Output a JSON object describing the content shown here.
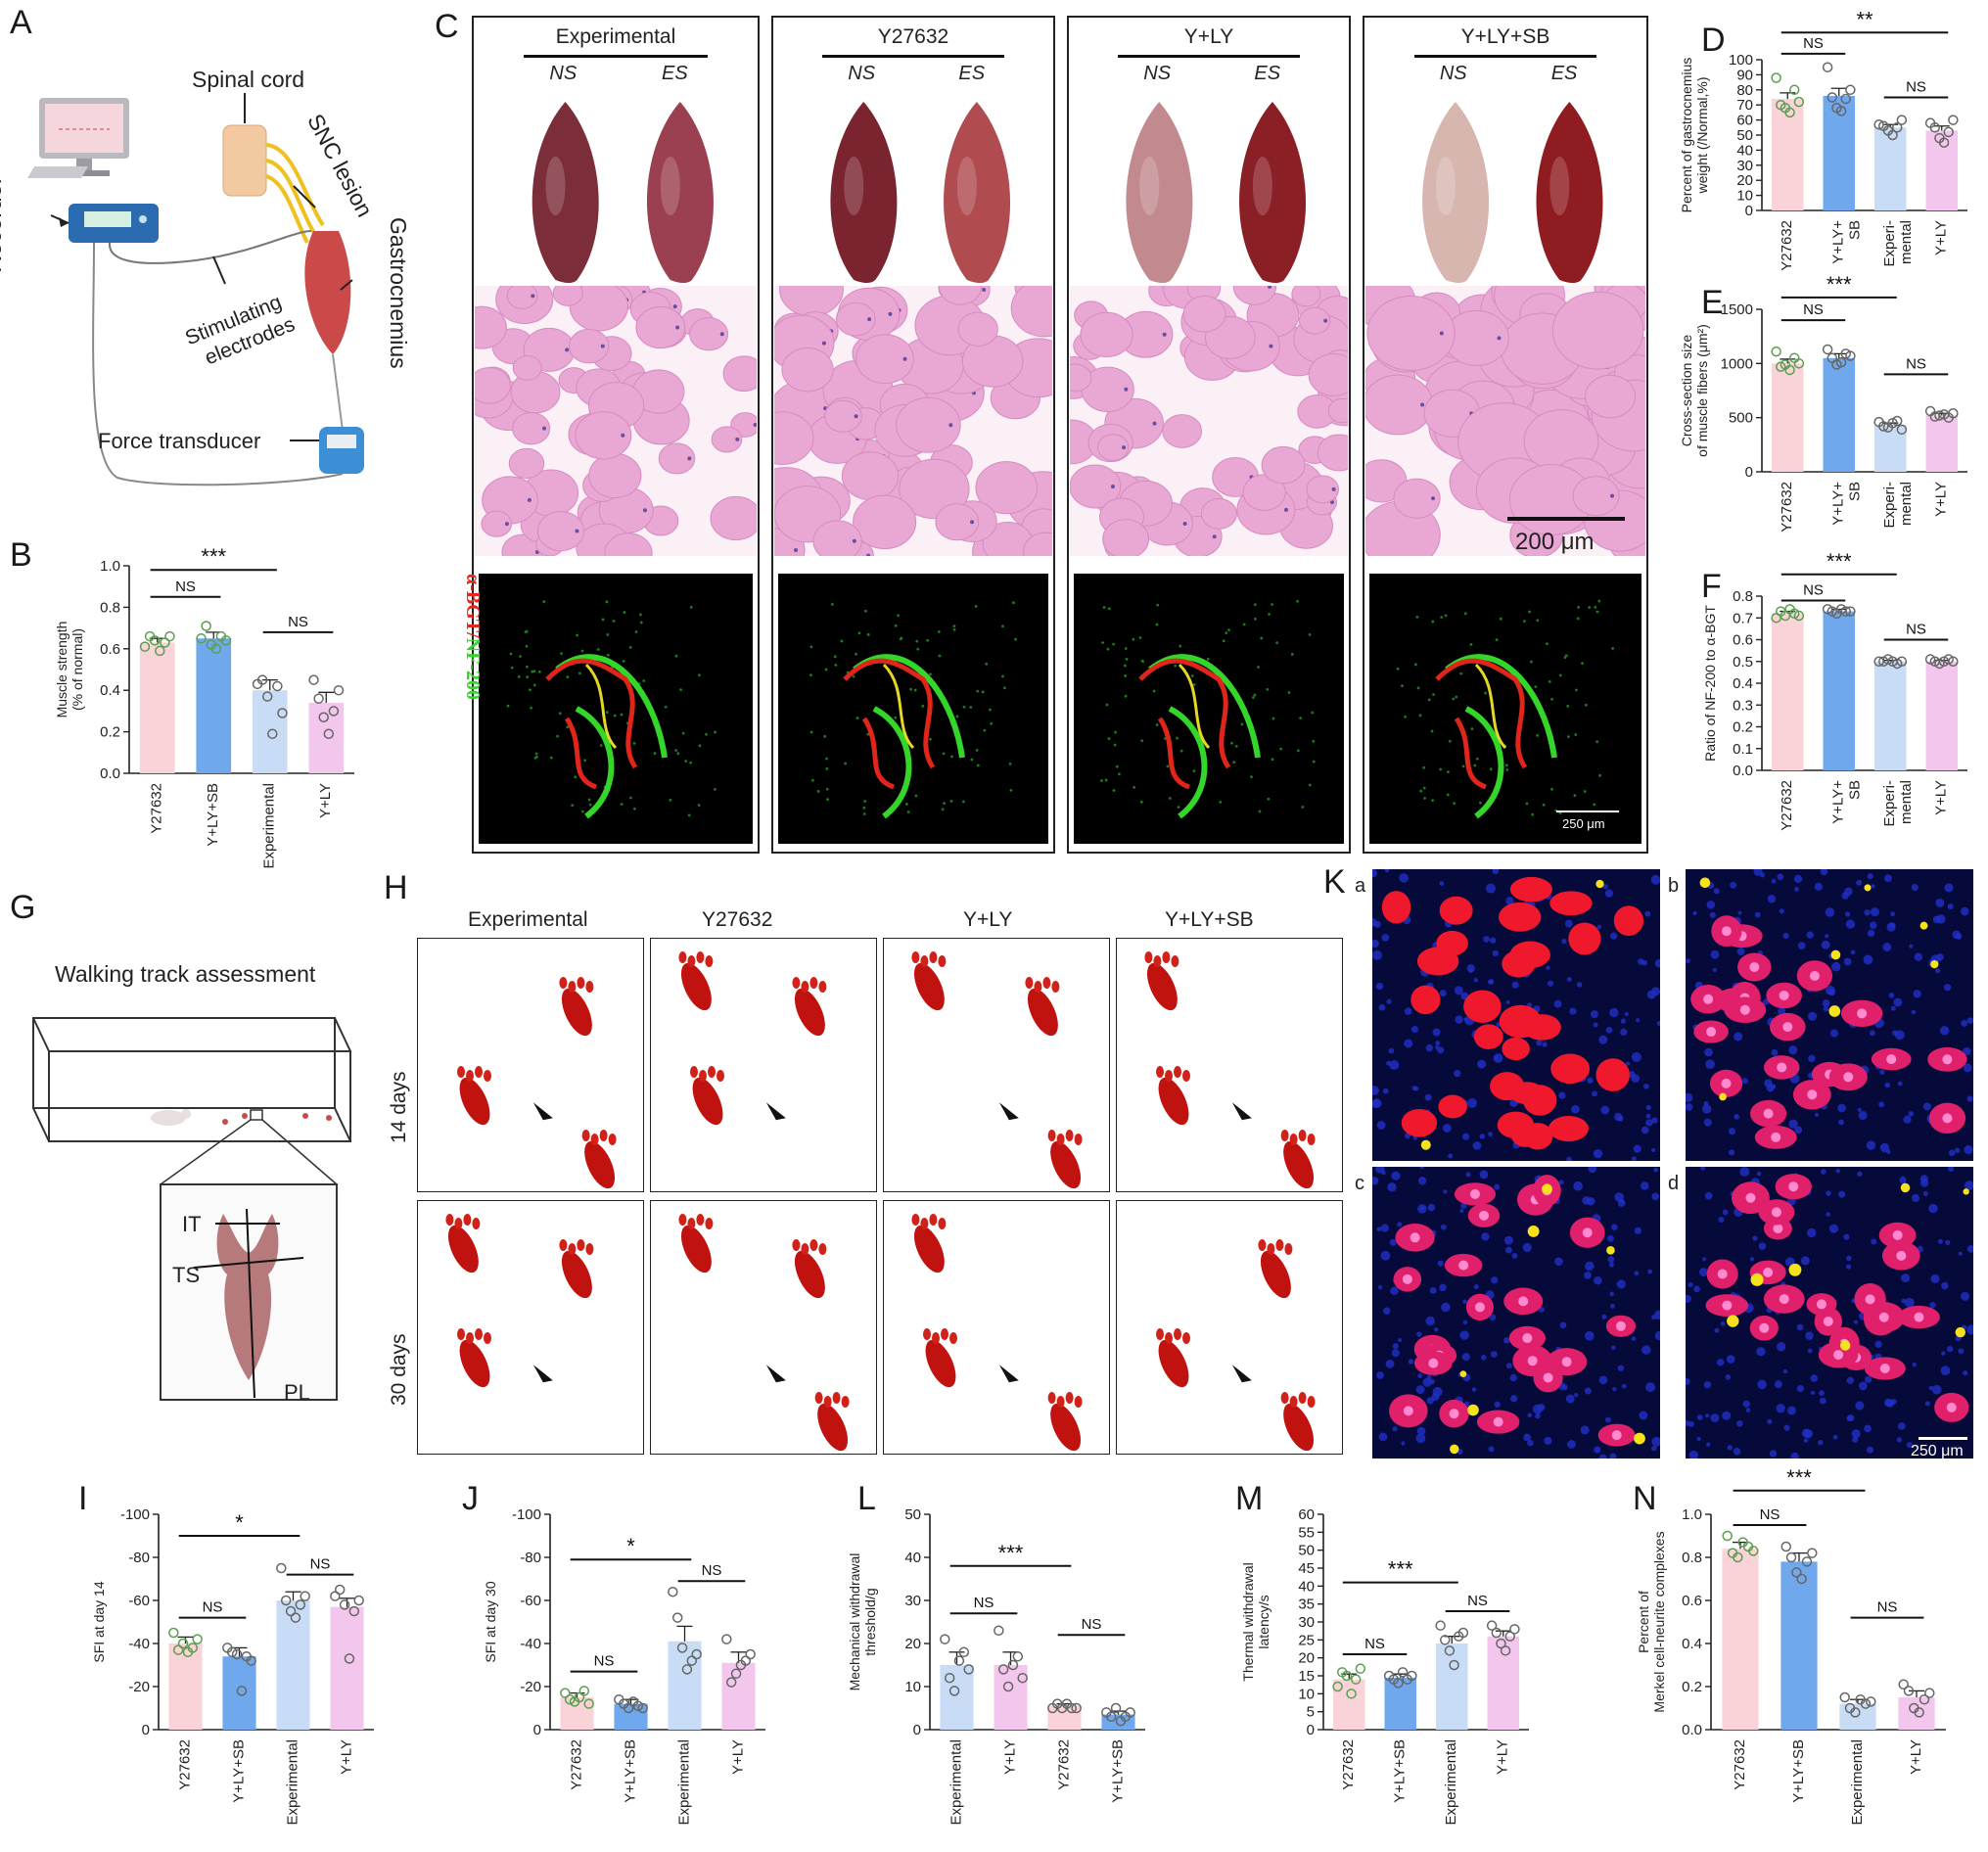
{
  "panels": {
    "A": {
      "letter": "A",
      "recorder": "Recorder",
      "spinal_cord": "Spinal cord",
      "snc_lesion": "SNC lesion",
      "gastrocnemius": "Gastrocnemius",
      "stim_line1": "Stimulating",
      "stim_line2": "electrodes",
      "force": "Force transducer"
    },
    "C": {
      "letter": "C",
      "groups": [
        "Experimental",
        "Y27632",
        "Y+LY",
        "Y+LY+SB"
      ],
      "ns": "NS",
      "es": "ES",
      "scale_he": "200 μm",
      "scale_if": "250 μm",
      "stain_red": "α-BGT",
      "stain_sep": "/",
      "stain_green": "NF-200"
    },
    "G": {
      "letter": "G",
      "title": "Walking track assessment",
      "it": "IT",
      "ts": "TS",
      "pl": "PL"
    },
    "H": {
      "letter": "H",
      "groups": [
        "Experimental",
        "Y27632",
        "Y+LY",
        "Y+LY+SB"
      ],
      "rows": [
        "14 days",
        "30 days"
      ]
    },
    "K": {
      "letter": "K",
      "subs": [
        "a",
        "b",
        "c",
        "d"
      ],
      "scale": "250 μm"
    }
  },
  "colors": {
    "pink": "#f9d3d8",
    "blue": "#6fa8ec",
    "lightblue": "#c8dcf6",
    "lavender": "#f3c6ee",
    "dot_green": "#5b9e4f",
    "dot_gray": "#666666"
  },
  "chart_data": [
    {
      "id": "B",
      "type": "bar",
      "ylabel": "Muscle strength\n(% of normal)",
      "ylim": [
        0,
        1.0
      ],
      "yticks": [
        0.0,
        0.2,
        0.4,
        0.6,
        0.8,
        1.0
      ],
      "tick_decimals": 1,
      "categories": [
        "Y27632",
        "Y+LY+SB",
        "Experimental",
        "Y+LY"
      ],
      "values": [
        0.63,
        0.65,
        0.4,
        0.34
      ],
      "errors": [
        0.02,
        0.03,
        0.05,
        0.05
      ],
      "points": [
        [
          0.61,
          0.66,
          0.64,
          0.59,
          0.63,
          0.66
        ],
        [
          0.65,
          0.71,
          0.62,
          0.6,
          0.66,
          0.64
        ],
        [
          0.43,
          0.45,
          0.37,
          0.19,
          0.42,
          0.29
        ],
        [
          0.45,
          0.36,
          0.27,
          0.19,
          0.3,
          0.4
        ]
      ],
      "sig": [
        {
          "a": 0,
          "b": 1,
          "label": "NS",
          "level": 0.85
        },
        {
          "a": 0,
          "b": 2,
          "label": "***",
          "level": 0.98
        },
        {
          "a": 2,
          "b": 3,
          "label": "NS",
          "level": 0.68
        }
      ]
    },
    {
      "id": "D",
      "type": "bar",
      "ylabel": "Percent of gastrocnemius\nweight (/Normal,%)",
      "ylim": [
        0,
        100
      ],
      "yticks": [
        0,
        10,
        20,
        30,
        40,
        50,
        60,
        70,
        80,
        90,
        100
      ],
      "tick_decimals": 0,
      "categories": [
        "Y27632",
        "Y+LY+\nSB",
        "Experi-\nmental",
        "Y+LY"
      ],
      "values": [
        74,
        76,
        55,
        53
      ],
      "errors": [
        4,
        5,
        2,
        3
      ],
      "points": [
        [
          88,
          70,
          68,
          65,
          80,
          72
        ],
        [
          95,
          75,
          68,
          66,
          74,
          80
        ],
        [
          57,
          56,
          53,
          50,
          55,
          60
        ],
        [
          58,
          55,
          48,
          45,
          52,
          60
        ]
      ],
      "sig": [
        {
          "a": 0,
          "b": 1,
          "label": "NS",
          "level": 104
        },
        {
          "a": 0,
          "b": 3,
          "label": "**",
          "level": 118
        },
        {
          "a": 2,
          "b": 3,
          "label": "NS",
          "level": 75
        }
      ]
    },
    {
      "id": "E",
      "type": "bar",
      "ylabel": "Cross-section size\nof muscle fibers (μm²)",
      "ylim": [
        0,
        1500
      ],
      "yticks": [
        0,
        500,
        1000,
        1500
      ],
      "tick_decimals": 0,
      "categories": [
        "Y27632",
        "Y+LY+\nSB",
        "Experi-\nmental",
        "Y+LY"
      ],
      "values": [
        1000,
        1050,
        430,
        520
      ],
      "errors": [
        40,
        40,
        20,
        20
      ],
      "points": [
        [
          1110,
          970,
          990,
          940,
          1050,
          1000
        ],
        [
          1130,
          1050,
          990,
          1010,
          1090,
          1070
        ],
        [
          460,
          420,
          410,
          450,
          470,
          390
        ],
        [
          560,
          510,
          520,
          530,
          500,
          540
        ]
      ],
      "sig": [
        {
          "a": 0,
          "b": 1,
          "label": "NS",
          "level": 1400
        },
        {
          "a": 0,
          "b": 2,
          "label": "***",
          "level": 1610
        },
        {
          "a": 2,
          "b": 3,
          "label": "NS",
          "level": 900
        }
      ]
    },
    {
      "id": "F",
      "type": "bar",
      "ylabel": "Ratio of NF-200 to α-BGT",
      "ylim": [
        0,
        0.8
      ],
      "yticks": [
        0.0,
        0.1,
        0.2,
        0.3,
        0.4,
        0.5,
        0.6,
        0.7,
        0.8
      ],
      "tick_decimals": 1,
      "categories": [
        "Y27632",
        "Y+LY+\nSB",
        "Experi-\nmental",
        "Y+LY"
      ],
      "values": [
        0.72,
        0.73,
        0.5,
        0.5
      ],
      "errors": [
        0.01,
        0.01,
        0.005,
        0.005
      ],
      "points": [
        [
          0.7,
          0.73,
          0.71,
          0.74,
          0.72,
          0.71
        ],
        [
          0.74,
          0.73,
          0.72,
          0.74,
          0.73,
          0.73
        ],
        [
          0.5,
          0.5,
          0.51,
          0.5,
          0.49,
          0.5
        ],
        [
          0.51,
          0.5,
          0.49,
          0.5,
          0.51,
          0.5
        ]
      ],
      "sig": [
        {
          "a": 0,
          "b": 1,
          "label": "NS",
          "level": 0.78
        },
        {
          "a": 0,
          "b": 2,
          "label": "***",
          "level": 0.9
        },
        {
          "a": 2,
          "b": 3,
          "label": "NS",
          "level": 0.6
        }
      ]
    },
    {
      "id": "I",
      "type": "bar",
      "ylabel": "SFI at day 14",
      "ylim": [
        0,
        -100
      ],
      "yticks": [
        0,
        -20,
        -40,
        -60,
        -80,
        -100
      ],
      "tick_decimals": 0,
      "categories": [
        "Y27632",
        "Y+LY+SB",
        "Experimental",
        "Y+LY"
      ],
      "values": [
        -40,
        -34,
        -60,
        -57
      ],
      "errors": [
        3,
        4,
        4,
        4
      ],
      "points": [
        [
          -45,
          -37,
          -40,
          -36,
          -38,
          -42
        ],
        [
          -38,
          -36,
          -35,
          -18,
          -34,
          -32
        ],
        [
          -75,
          -60,
          -55,
          -52,
          -58,
          -62
        ],
        [
          -62,
          -65,
          -58,
          -33,
          -55,
          -60
        ]
      ],
      "sig": [
        {
          "a": 0,
          "b": 1,
          "label": "NS",
          "level": -52
        },
        {
          "a": 0,
          "b": 2,
          "label": "*",
          "level": -90
        },
        {
          "a": 2,
          "b": 3,
          "label": "NS",
          "level": -72
        }
      ]
    },
    {
      "id": "J",
      "type": "bar",
      "ylabel": "SFI at day 30",
      "ylim": [
        0,
        -100
      ],
      "yticks": [
        0,
        -20,
        -40,
        -60,
        -80,
        -100
      ],
      "tick_decimals": 0,
      "categories": [
        "Y27632",
        "Y+LY+SB",
        "Experimental",
        "Y+LY"
      ],
      "values": [
        -15,
        -12,
        -41,
        -31
      ],
      "errors": [
        2,
        2,
        7,
        5
      ],
      "points": [
        [
          -17,
          -14,
          -13,
          -15,
          -18,
          -12
        ],
        [
          -14,
          -12,
          -10,
          -13,
          -11,
          -10
        ],
        [
          -64,
          -52,
          -38,
          -28,
          -32,
          -35
        ],
        [
          -42,
          -22,
          -26,
          -30,
          -32,
          -35
        ]
      ],
      "sig": [
        {
          "a": 0,
          "b": 1,
          "label": "NS",
          "level": -27
        },
        {
          "a": 0,
          "b": 2,
          "label": "*",
          "level": -79
        },
        {
          "a": 2,
          "b": 3,
          "label": "NS",
          "level": -69
        }
      ]
    },
    {
      "id": "L",
      "type": "bar",
      "ylabel": "Mechanical withdrawal\nthreshold/g",
      "ylim": [
        0,
        50
      ],
      "yticks": [
        0,
        10,
        20,
        30,
        40,
        50
      ],
      "tick_decimals": 0,
      "categories": [
        "Experimental",
        "Y+LY",
        "Y27632",
        "Y+LY+SB"
      ],
      "values": [
        15,
        15,
        5.5,
        3.5
      ],
      "errors": [
        3,
        3,
        0.5,
        0.8
      ],
      "points": [
        [
          21,
          12,
          9,
          16,
          18,
          14
        ],
        [
          23,
          14,
          10,
          15,
          17,
          12
        ],
        [
          5,
          6,
          5,
          6,
          5,
          5
        ],
        [
          4,
          3,
          5,
          2,
          3,
          4
        ]
      ],
      "sig": [
        {
          "a": 0,
          "b": 1,
          "label": "NS",
          "level": 27
        },
        {
          "a": 0,
          "b": 2,
          "label": "***",
          "level": 38
        },
        {
          "a": 2,
          "b": 3,
          "label": "NS",
          "level": 22
        }
      ]
    },
    {
      "id": "M",
      "type": "bar",
      "ylabel": "Thermal withdrawal\nlatency/s",
      "ylim": [
        0,
        60
      ],
      "yticks": [
        0,
        5,
        10,
        15,
        20,
        25,
        30,
        35,
        40,
        45,
        50,
        55,
        60
      ],
      "tick_decimals": 0,
      "categories": [
        "Y27632",
        "Y+LY+SB",
        "Experimental",
        "Y+LY"
      ],
      "values": [
        14,
        14.5,
        24,
        26
      ],
      "errors": [
        1.5,
        1,
        2,
        1.5
      ],
      "points": [
        [
          12,
          16,
          15,
          10,
          14,
          17
        ],
        [
          15,
          14,
          13,
          16,
          14,
          15
        ],
        [
          29,
          25,
          22,
          18,
          26,
          27
        ],
        [
          29,
          27,
          24,
          22,
          26,
          28
        ]
      ],
      "sig": [
        {
          "a": 0,
          "b": 1,
          "label": "NS",
          "level": 21
        },
        {
          "a": 0,
          "b": 2,
          "label": "***",
          "level": 41
        },
        {
          "a": 2,
          "b": 3,
          "label": "NS",
          "level": 33
        }
      ]
    },
    {
      "id": "N",
      "type": "bar",
      "ylabel": "Percent of\nMerkel cell-neurite complexes",
      "ylim": [
        0,
        1.0
      ],
      "yticks": [
        0.0,
        0.2,
        0.4,
        0.6,
        0.8,
        1.0
      ],
      "tick_decimals": 1,
      "categories": [
        "Y27632",
        "Y+LY+SB",
        "Experimental",
        "Y+LY"
      ],
      "values": [
        0.84,
        0.78,
        0.12,
        0.15
      ],
      "errors": [
        0.03,
        0.04,
        0.02,
        0.03
      ],
      "points": [
        [
          0.9,
          0.82,
          0.8,
          0.87,
          0.85,
          0.83
        ],
        [
          0.85,
          0.8,
          0.73,
          0.7,
          0.78,
          0.82
        ],
        [
          0.15,
          0.1,
          0.08,
          0.14,
          0.12,
          0.13
        ],
        [
          0.21,
          0.18,
          0.1,
          0.08,
          0.14,
          0.17
        ]
      ],
      "sig": [
        {
          "a": 0,
          "b": 1,
          "label": "NS",
          "level": 0.95
        },
        {
          "a": 0,
          "b": 2,
          "label": "***",
          "level": 1.11
        },
        {
          "a": 2,
          "b": 3,
          "label": "NS",
          "level": 0.52
        }
      ]
    }
  ]
}
